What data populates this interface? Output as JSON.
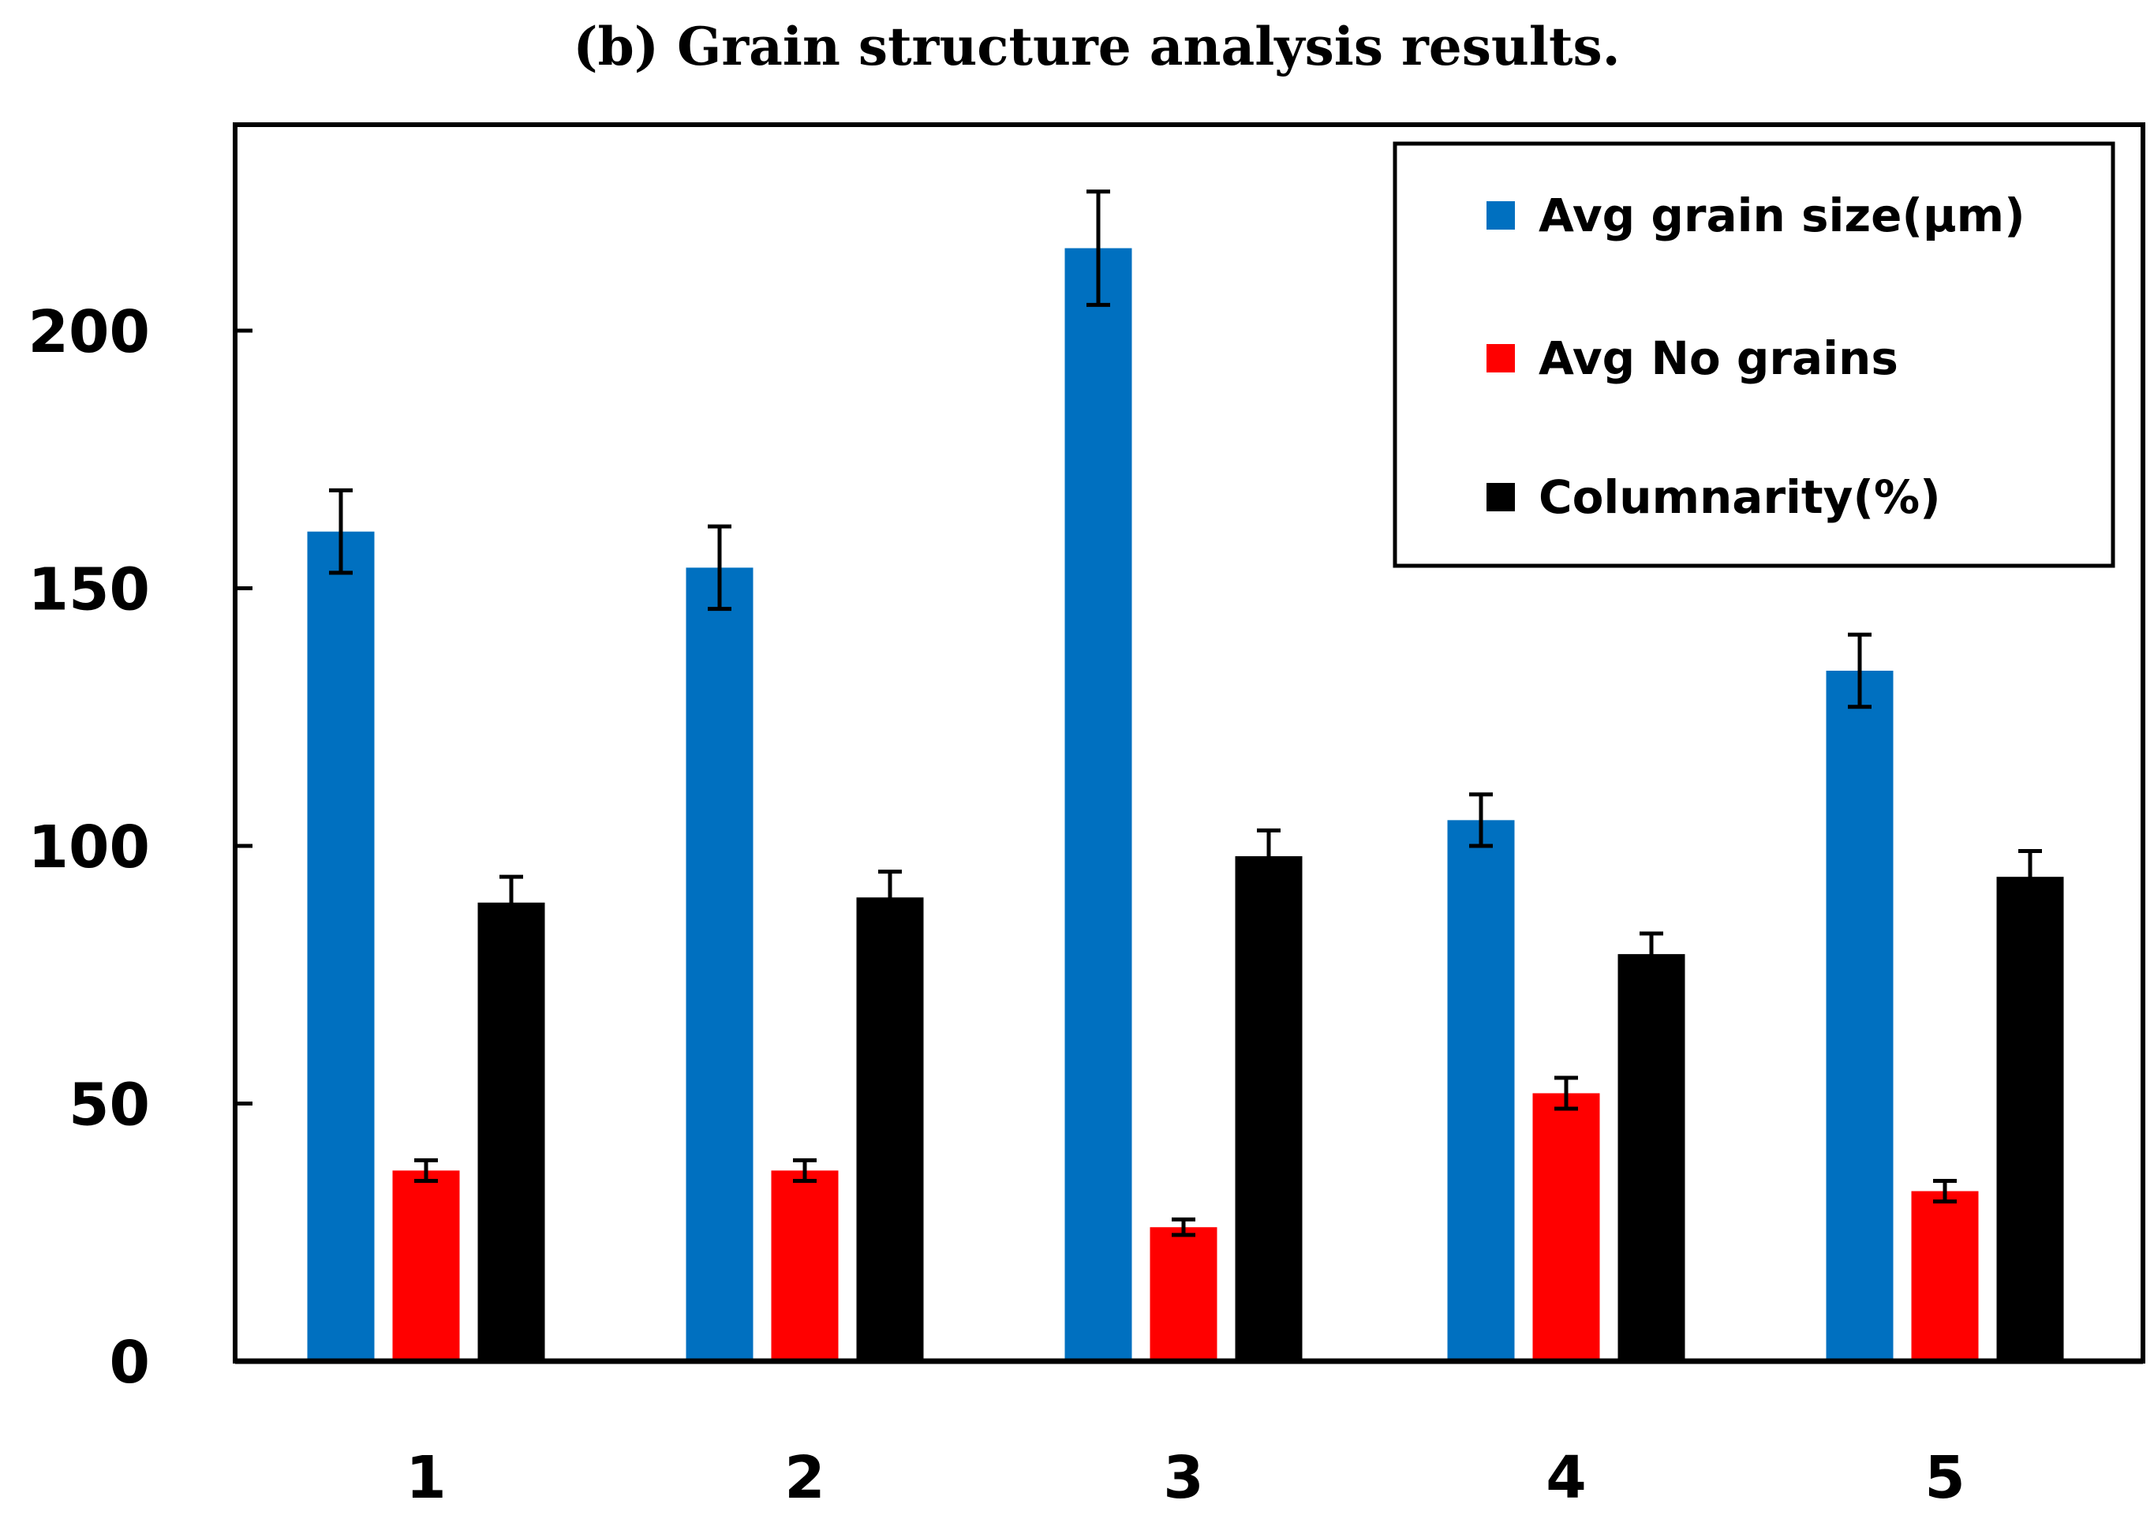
{
  "chart_data": {
    "type": "bar",
    "title": "(b) Grain structure analysis results.",
    "xlabel": "",
    "ylabel": "",
    "categories": [
      "1",
      "2",
      "3",
      "4",
      "5"
    ],
    "ylim": [
      0,
      240
    ],
    "yticks": [
      0,
      50,
      100,
      150,
      200
    ],
    "grid": false,
    "legend_position": "top-right",
    "series": [
      {
        "name": "Avg grain size(μm)",
        "color": "#0070c0",
        "values": [
          161,
          154,
          216,
          105,
          134
        ],
        "errors": [
          8,
          8,
          11,
          5,
          7
        ]
      },
      {
        "name": "Avg No grains",
        "color": "#ff0000",
        "values": [
          37,
          37,
          26,
          52,
          33
        ],
        "errors": [
          2,
          2,
          1.5,
          3,
          2
        ]
      },
      {
        "name": "Columnarity(%)",
        "color": "#000000",
        "values": [
          89,
          90,
          98,
          79,
          94
        ],
        "errors": [
          5,
          5,
          5,
          4,
          5
        ]
      }
    ]
  }
}
